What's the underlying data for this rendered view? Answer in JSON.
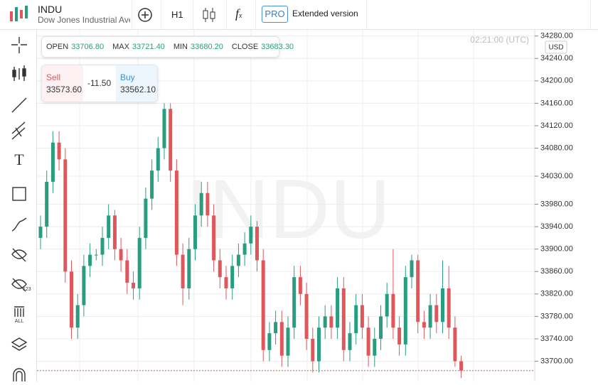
{
  "header": {
    "symbol": "INDU",
    "description": "Dow Jones Industrial Ave",
    "timeframe": "H1",
    "pro_badge": "PRO",
    "extended": "Extended version",
    "function_icon": "f",
    "function_sub": "x"
  },
  "toolbar": {
    "text_tool": "T",
    "icon_123": "123",
    "icon_all": "ALL"
  },
  "info": {
    "open_label": "OPEN",
    "open": "33706.80",
    "max_label": "MAX",
    "max": "33721.40",
    "min_label": "MIN",
    "min": "33680.20",
    "close_label": "CLOSE",
    "close": "33683.30"
  },
  "trade": {
    "sell_label": "Sell",
    "sell": "33573.60",
    "spread": "-11.50",
    "buy_label": "Buy",
    "buy": "33562.10"
  },
  "chart_data": {
    "type": "candlestick",
    "watermark": "INDU",
    "time": "02:21:00 (UTC)",
    "currency": "USD",
    "up_color": "#2a9d80",
    "down_color": "#e0575b",
    "grid": true,
    "ylim": [
      33664,
      34291
    ],
    "yticks": [
      {
        "value": 34280,
        "label": "34280.00"
      },
      {
        "value": 34240,
        "label": "34240.00"
      },
      {
        "value": 34200,
        "label": "34200.00"
      },
      {
        "value": 34160,
        "label": "34160.00"
      },
      {
        "value": 34120,
        "label": "34120.00"
      },
      {
        "value": 34080,
        "label": "34080.00"
      },
      {
        "value": 34030,
        "label": "34030.00"
      },
      {
        "value": 33980,
        "label": "33980.00"
      },
      {
        "value": 33940,
        "label": "33940.00"
      },
      {
        "value": 33900,
        "label": "33900.00"
      },
      {
        "value": 33860,
        "label": "33860.00"
      },
      {
        "value": 33820,
        "label": "33820.00"
      },
      {
        "value": 33780,
        "label": "33780.00"
      },
      {
        "value": 33740,
        "label": "33740.00"
      },
      {
        "value": 33700,
        "label": "33700.00"
      }
    ],
    "open": [
      33920,
      33940,
      34020,
      34090,
      34060,
      33860,
      33760,
      33800,
      33870,
      33890,
      33890,
      33920,
      33960,
      33900,
      33880,
      33840,
      33830,
      33920,
      33990,
      34040,
      34080,
      34150,
      34040,
      33890,
      33830,
      33900,
      33960,
      34000,
      33960,
      33880,
      33850,
      33830,
      33870,
      33890,
      33910,
      33940,
      33880,
      33720,
      33750,
      33770,
      33710,
      33760,
      33850,
      33820,
      33740,
      33700,
      33760,
      33780,
      33760,
      33830,
      33720,
      33750,
      33800,
      33760,
      33710,
      33740,
      33780,
      33820,
      33760,
      33730,
      33850,
      33880,
      33770,
      33760,
      33800,
      33770,
      33830,
      33760,
      33700
    ],
    "high": [
      33960,
      34040,
      34110,
      34110,
      34080,
      33880,
      33820,
      33890,
      33910,
      33900,
      33940,
      33980,
      33970,
      33920,
      33900,
      33860,
      33940,
      34010,
      34060,
      34100,
      34160,
      34160,
      34060,
      33910,
      33920,
      33980,
      34020,
      34020,
      33980,
      33900,
      33870,
      33890,
      33910,
      33930,
      33960,
      33950,
      33900,
      33770,
      33790,
      33790,
      33780,
      33870,
      33870,
      33840,
      33760,
      33780,
      33800,
      33800,
      33850,
      33850,
      33770,
      33820,
      33820,
      33780,
      33760,
      33800,
      33840,
      33900,
      33780,
      33870,
      33890,
      33890,
      33790,
      33820,
      33820,
      33880,
      33870,
      33780,
      33710
    ],
    "low": [
      33900,
      33920,
      34000,
      34040,
      33840,
      33740,
      33740,
      33780,
      33850,
      33880,
      33870,
      33900,
      33880,
      33860,
      33820,
      33810,
      33810,
      33900,
      33970,
      34020,
      34060,
      34020,
      33870,
      33800,
      33810,
      33880,
      33940,
      33940,
      33860,
      33830,
      33810,
      33810,
      33850,
      33870,
      33890,
      33860,
      33700,
      33700,
      33730,
      33690,
      33690,
      33740,
      33800,
      33720,
      33680,
      33680,
      33740,
      33740,
      33740,
      33700,
      33700,
      33730,
      33740,
      33690,
      33690,
      33720,
      33760,
      33740,
      33710,
      33710,
      33830,
      33750,
      33740,
      33740,
      33750,
      33750,
      33740,
      33690,
      33670
    ],
    "close": [
      33940,
      34020,
      34090,
      34060,
      33860,
      33760,
      33800,
      33870,
      33890,
      33890,
      33920,
      33960,
      33900,
      33880,
      33840,
      33830,
      33920,
      33990,
      34040,
      34080,
      34150,
      34040,
      33890,
      33830,
      33900,
      33960,
      34000,
      33960,
      33880,
      33850,
      33830,
      33870,
      33890,
      33910,
      33940,
      33880,
      33720,
      33750,
      33770,
      33710,
      33760,
      33850,
      33820,
      33740,
      33700,
      33760,
      33780,
      33760,
      33830,
      33720,
      33750,
      33800,
      33760,
      33710,
      33740,
      33780,
      33820,
      33760,
      33730,
      33850,
      33880,
      33770,
      33760,
      33800,
      33770,
      33830,
      33760,
      33700,
      33683.3
    ]
  }
}
